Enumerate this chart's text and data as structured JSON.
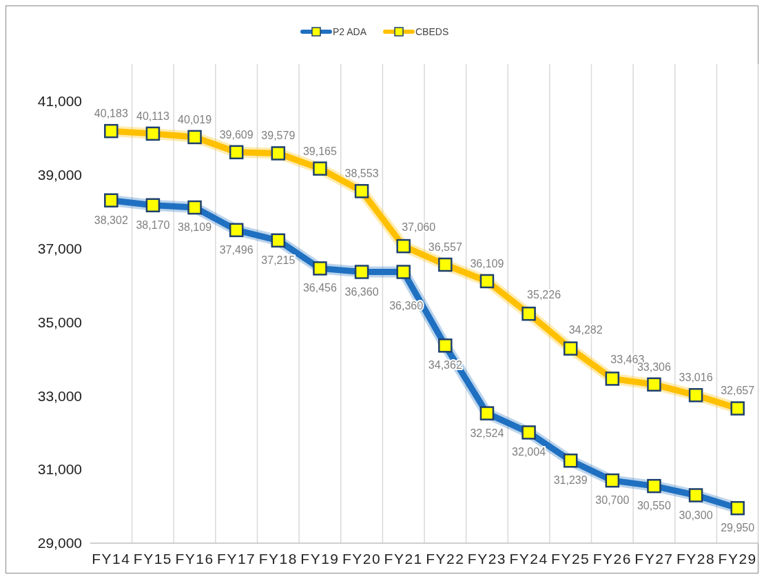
{
  "chart_data": {
    "type": "line",
    "categories": [
      "FY14",
      "FY15",
      "FY16",
      "FY17",
      "FY18",
      "FY19",
      "FY20",
      "FY21",
      "FY22",
      "FY23",
      "FY24",
      "FY25",
      "FY26",
      "FY27",
      "FY28",
      "FY29"
    ],
    "series": [
      {
        "name": "P2 ADA",
        "color": "#1f70c1",
        "values": [
          38302,
          38170,
          38109,
          37496,
          37215,
          36456,
          36360,
          36360,
          34362,
          32524,
          32004,
          31239,
          30700,
          30550,
          30300,
          29950
        ],
        "value_labels": [
          "38,302",
          "38,170",
          "38,109",
          "37,496",
          "37,215",
          "36,456",
          "36,360",
          "36,360",
          "34,362",
          "32,524",
          "32,004",
          "31,239",
          "30,700",
          "30,550",
          "30,300",
          "29,950"
        ]
      },
      {
        "name": "CBEDS",
        "color": "#ffc000",
        "values": [
          40183,
          40113,
          40019,
          39609,
          39579,
          39165,
          38553,
          37060,
          36557,
          36109,
          35226,
          34282,
          33463,
          33306,
          33016,
          32657
        ],
        "value_labels": [
          "40,183",
          "40,113",
          "40,019",
          "39,609",
          "39,579",
          "39,165",
          "38,553",
          "37,060",
          "36,557",
          "36,109",
          "35,226",
          "34,282",
          "33,463",
          "33,306",
          "33,016",
          "32,657"
        ]
      }
    ],
    "ylim": [
      29000,
      42000
    ],
    "yticks": [
      {
        "value": 29000,
        "label": "29,000"
      },
      {
        "value": 31000,
        "label": "31,000"
      },
      {
        "value": 33000,
        "label": "33,000"
      },
      {
        "value": 35000,
        "label": "35,000"
      },
      {
        "value": 37000,
        "label": "37,000"
      },
      {
        "value": 39000,
        "label": "39,000"
      },
      {
        "value": 41000,
        "label": "41,000"
      }
    ],
    "grid": "x",
    "legend": "top",
    "marker": "square",
    "line_style": "solid"
  }
}
